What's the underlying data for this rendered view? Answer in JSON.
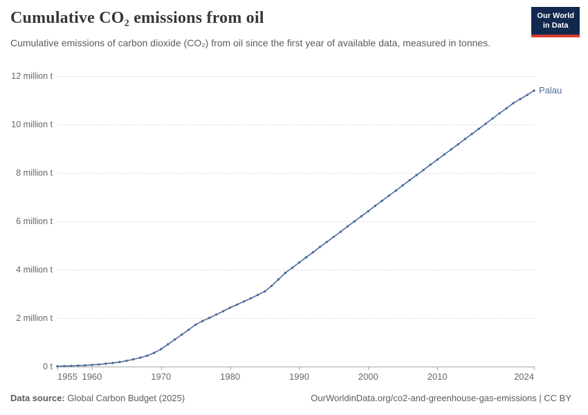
{
  "header": {
    "title": "Cumulative CO₂ emissions from oil",
    "subtitle": "Cumulative emissions of carbon dioxide (CO₂) from oil since the first year of available data, measured in tonnes.",
    "logo_line1": "Our World",
    "logo_line2": "in Data"
  },
  "footer": {
    "source_label": "Data source:",
    "source_text": "Global Carbon Budget (2025)",
    "link_text": "OurWorldinData.org/co2-and-greenhouse-gas-emissions | CC BY"
  },
  "colors": {
    "line": "#4C6A9C",
    "logo_bg": "#12294E",
    "logo_red": "#D93C32",
    "grid": "#dcdcdc",
    "axis": "#a3a3a3",
    "tick_text": "#666666",
    "title_text": "#373737",
    "subtitle_text": "#5b5b5b"
  },
  "chart_data": {
    "type": "line",
    "title": "Cumulative CO₂ emissions from oil",
    "unit": "million tonnes",
    "series_label": "Palau",
    "line_color": "#4C6A9C",
    "grid": true,
    "legend_position": "end-of-line",
    "xlim": [
      1955,
      2024
    ],
    "ylim": [
      0,
      12
    ],
    "yticks": [
      {
        "value": 0,
        "label": "0 t"
      },
      {
        "value": 2,
        "label": "2 million t"
      },
      {
        "value": 4,
        "label": "4 million t"
      },
      {
        "value": 6,
        "label": "6 million t"
      },
      {
        "value": 8,
        "label": "8 million t"
      },
      {
        "value": 10,
        "label": "10 million t"
      },
      {
        "value": 12,
        "label": "12 million t"
      }
    ],
    "xticks": [
      {
        "year": 1955,
        "label": "1955",
        "align": "left"
      },
      {
        "year": 1960,
        "label": "1960",
        "align": "center"
      },
      {
        "year": 1970,
        "label": "1970",
        "align": "center"
      },
      {
        "year": 1980,
        "label": "1980",
        "align": "center"
      },
      {
        "year": 1990,
        "label": "1990",
        "align": "center"
      },
      {
        "year": 2000,
        "label": "2000",
        "align": "center"
      },
      {
        "year": 2010,
        "label": "2010",
        "align": "center"
      },
      {
        "year": 2024,
        "label": "2024",
        "align": "right"
      }
    ],
    "series": [
      {
        "name": "Palau",
        "x": [
          1955,
          1956,
          1957,
          1958,
          1959,
          1960,
          1961,
          1962,
          1963,
          1964,
          1965,
          1966,
          1967,
          1968,
          1969,
          1970,
          1971,
          1972,
          1973,
          1974,
          1975,
          1976,
          1977,
          1978,
          1979,
          1980,
          1981,
          1982,
          1983,
          1984,
          1985,
          1986,
          1987,
          1988,
          1989,
          1990,
          1991,
          1992,
          1993,
          1994,
          1995,
          1996,
          1997,
          1998,
          1999,
          2000,
          2001,
          2002,
          2003,
          2004,
          2005,
          2006,
          2007,
          2008,
          2009,
          2010,
          2011,
          2012,
          2013,
          2014,
          2015,
          2016,
          2017,
          2018,
          2019,
          2020,
          2021,
          2022,
          2023,
          2024
        ],
        "values": [
          0.01,
          0.02,
          0.03,
          0.04,
          0.05,
          0.07,
          0.09,
          0.12,
          0.15,
          0.19,
          0.24,
          0.3,
          0.37,
          0.45,
          0.57,
          0.72,
          0.92,
          1.12,
          1.32,
          1.52,
          1.73,
          1.88,
          2.01,
          2.15,
          2.29,
          2.43,
          2.56,
          2.69,
          2.82,
          2.96,
          3.1,
          3.33,
          3.6,
          3.87,
          4.08,
          4.3,
          4.51,
          4.72,
          4.94,
          5.15,
          5.36,
          5.57,
          5.79,
          6.0,
          6.21,
          6.42,
          6.64,
          6.85,
          7.06,
          7.27,
          7.49,
          7.7,
          7.91,
          8.12,
          8.34,
          8.55,
          8.76,
          8.97,
          9.18,
          9.4,
          9.61,
          9.82,
          10.03,
          10.25,
          10.46,
          10.67,
          10.88,
          11.05,
          11.22,
          11.4
        ]
      }
    ]
  }
}
